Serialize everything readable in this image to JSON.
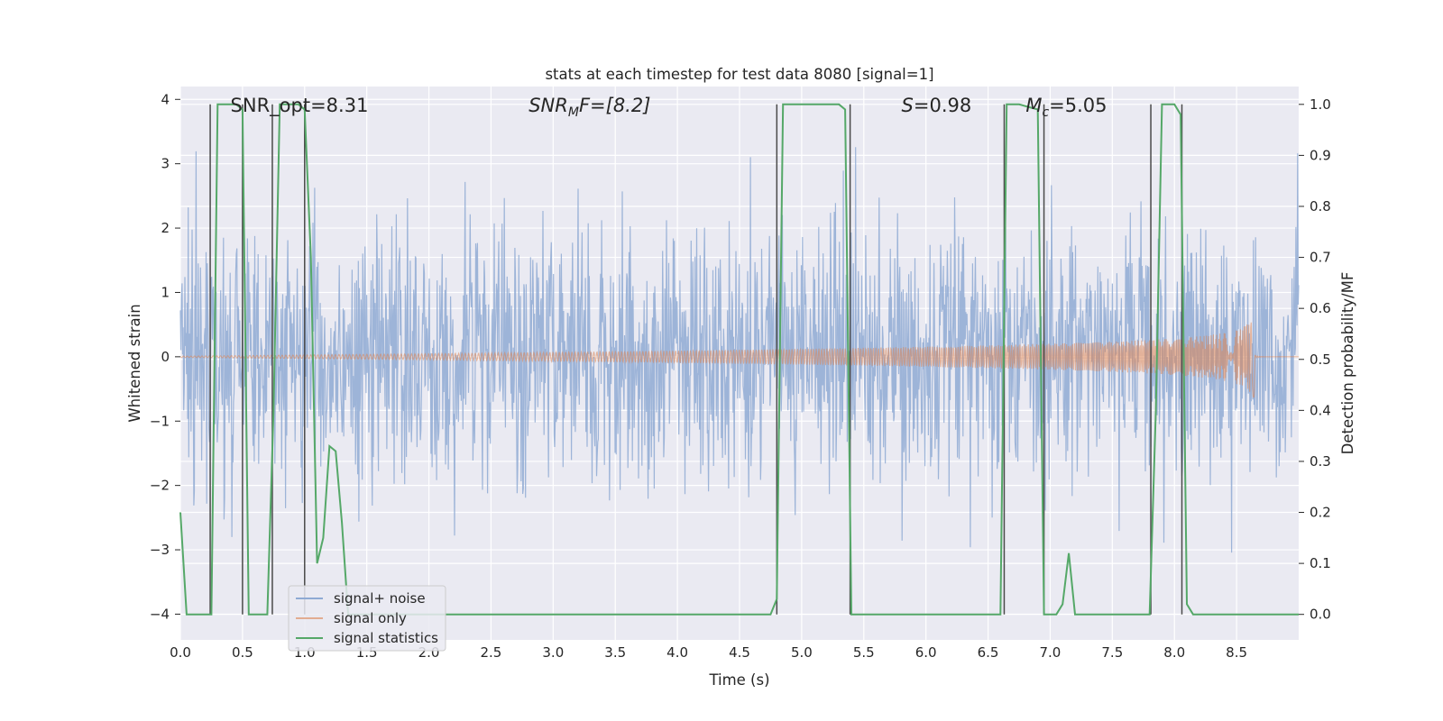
{
  "chart_data": {
    "type": "line",
    "title": "stats at each timestep for test data 8080 [signal=1]",
    "xlabel": "Time (s)",
    "ylabel_left": "Whitened strain",
    "ylabel_right": "Detection probability/MF",
    "xlim": [
      0,
      9.0
    ],
    "ylim_left": [
      -4.4,
      4.2
    ],
    "ylim_right": [
      -0.05,
      1.035
    ],
    "grid": true,
    "legend_position": "lower-left",
    "x_ticks": [
      "0.0",
      "0.5",
      "1.0",
      "1.5",
      "2.0",
      "2.5",
      "3.0",
      "3.5",
      "4.0",
      "4.5",
      "5.0",
      "5.5",
      "6.0",
      "6.5",
      "7.0",
      "7.5",
      "8.0",
      "8.5"
    ],
    "x_tick_values": [
      0,
      0.5,
      1,
      1.5,
      2,
      2.5,
      3,
      3.5,
      4,
      4.5,
      5,
      5.5,
      6,
      6.5,
      7,
      7.5,
      8,
      8.5
    ],
    "y_ticks_left": [
      "−4",
      "−3",
      "−2",
      "−1",
      "0",
      "1",
      "2",
      "3",
      "4"
    ],
    "y_tick_values_left": [
      -4,
      -3,
      -2,
      -1,
      0,
      1,
      2,
      3,
      4
    ],
    "y_ticks_right": [
      "0.0",
      "0.1",
      "0.2",
      "0.3",
      "0.4",
      "0.5",
      "0.6",
      "0.7",
      "0.8",
      "0.9",
      "1.0"
    ],
    "y_tick_values_right": [
      0,
      0.1,
      0.2,
      0.3,
      0.4,
      0.5,
      0.6,
      0.7,
      0.8,
      0.9,
      1.0
    ],
    "annotations": [
      {
        "text": "SNR_opt=8.31",
        "x": 0.2
      },
      {
        "text": "SNR",
        "sub": "M",
        "tail": "F=[8.2]",
        "italic": true,
        "x": 2.6
      },
      {
        "text": "S",
        "tail": "=0.98",
        "italic": true,
        "x": 5.6
      },
      {
        "text": "M",
        "sub": "c",
        "tail": "=5.05",
        "italic": true,
        "x": 6.6
      }
    ],
    "series": [
      {
        "name": "signal+ noise",
        "color": "#8faad4",
        "description": "whitened strain, noise std ~1.0, spikes to ~3.7",
        "noise_envelope": 1.0,
        "max_abs": 3.7
      },
      {
        "name": "signal only",
        "color": "#dd8452",
        "description": "chirp waveform growing in amplitude until merger",
        "merger_time": 8.65,
        "max_amplitude": 0.8
      },
      {
        "name": "signal statistics",
        "color": "#55a868",
        "axis": "right",
        "x": [
          0.0,
          0.05,
          0.1,
          0.15,
          0.2,
          0.25,
          0.3,
          0.35,
          0.4,
          0.45,
          0.5,
          0.55,
          0.6,
          0.65,
          0.7,
          0.75,
          0.8,
          0.85,
          0.9,
          0.95,
          1.0,
          1.05,
          1.1,
          1.15,
          1.2,
          1.25,
          1.3,
          1.35,
          1.4,
          1.45,
          1.5,
          1.6,
          2.0,
          3.0,
          4.0,
          4.5,
          4.75,
          4.8,
          4.85,
          4.9,
          4.95,
          5.0,
          5.3,
          5.35,
          5.4,
          5.45,
          5.5,
          5.55,
          6.0,
          6.55,
          6.6,
          6.65,
          6.7,
          6.75,
          6.9,
          6.95,
          7.0,
          7.05,
          7.1,
          7.15,
          7.2,
          7.25,
          7.3,
          7.8,
          7.85,
          7.9,
          7.95,
          8.0,
          8.05,
          8.1,
          8.15,
          8.2,
          8.5,
          9.0
        ],
        "values": [
          0.2,
          0.0,
          0.0,
          0.0,
          0.0,
          0.0,
          1.0,
          1.0,
          1.0,
          1.0,
          0.99,
          0.0,
          0.0,
          0.0,
          0.0,
          0.4,
          1.0,
          1.0,
          1.0,
          1.0,
          0.99,
          0.7,
          0.1,
          0.15,
          0.33,
          0.32,
          0.18,
          0.0,
          0.0,
          0.0,
          0.0,
          0.0,
          0.0,
          0.0,
          0.0,
          0.0,
          0.0,
          0.03,
          1.0,
          1.0,
          1.0,
          1.0,
          1.0,
          0.99,
          0.0,
          0.0,
          0.0,
          0.0,
          0.0,
          0.0,
          0.0,
          1.0,
          1.0,
          1.0,
          0.99,
          0.0,
          0.0,
          0.0,
          0.02,
          0.12,
          0.0,
          0.0,
          0.0,
          0.0,
          0.4,
          1.0,
          1.0,
          1.0,
          0.98,
          0.02,
          0.0,
          0.0,
          0.0,
          0.0
        ]
      }
    ],
    "vertical_lines": [
      0.24,
      0.5,
      0.74,
      1.0,
      4.8,
      5.39,
      6.63,
      6.95,
      7.81,
      8.06
    ]
  }
}
